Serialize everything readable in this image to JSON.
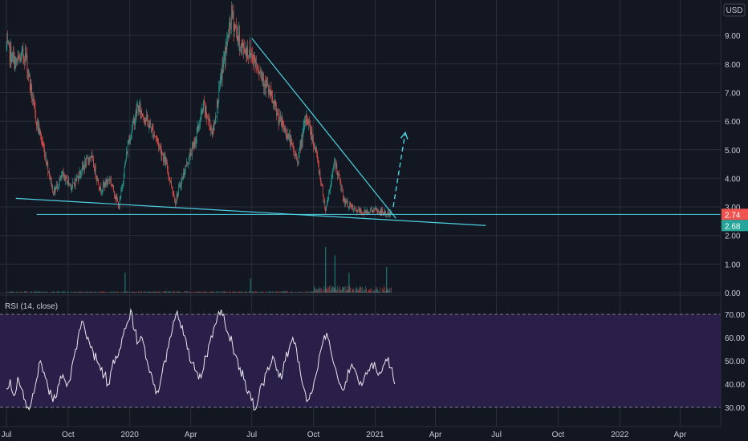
{
  "currency_label": "USD",
  "colors": {
    "background": "#131722",
    "grid": "#2a2e39",
    "up": "#26a69a",
    "down": "#ef5350",
    "drawing": "#4dd0e1",
    "rsi_band": "#2a1f49",
    "rsi_line": "#e8e8ee",
    "rsi_bound": "#787b86"
  },
  "chart_data": [
    {
      "type": "candlestick",
      "title": "",
      "price_axis": {
        "ylim": [
          0,
          10
        ],
        "ticks": [
          "0.00",
          "1.00",
          "2.00",
          "3.00",
          "4.00",
          "5.00",
          "6.00",
          "7.00",
          "8.00",
          "9.00"
        ],
        "tick_values": [
          0,
          1,
          2,
          3,
          4,
          5,
          6,
          7,
          8,
          9
        ]
      },
      "price_labels": [
        {
          "text": "2.74",
          "value": 2.74,
          "color": "#ef5350"
        },
        {
          "text": "2.68",
          "value": 2.68,
          "color": "#26a69a"
        }
      ],
      "x_axis_ticks": [
        "Jul",
        "Oct",
        "2020",
        "Apr",
        "Jul",
        "Oct",
        "2021",
        "Apr",
        "Jul",
        "Oct",
        "2022",
        "Apr"
      ],
      "price_path": [
        [
          "2019-07-01",
          8.6
        ],
        [
          "2019-07-15",
          8.0
        ],
        [
          "2019-07-29",
          8.4
        ],
        [
          "2019-08-12",
          6.3
        ],
        [
          "2019-08-26",
          5.0
        ],
        [
          "2019-09-09",
          3.5
        ],
        [
          "2019-09-23",
          4.1
        ],
        [
          "2019-10-07",
          3.7
        ],
        [
          "2019-10-21",
          4.3
        ],
        [
          "2019-11-04",
          4.8
        ],
        [
          "2019-11-18",
          3.6
        ],
        [
          "2019-12-02",
          4.0
        ],
        [
          "2019-12-16",
          3.0
        ],
        [
          "2019-12-30",
          5.3
        ],
        [
          "2020-01-13",
          6.5
        ],
        [
          "2020-01-27",
          6.0
        ],
        [
          "2020-02-10",
          5.4
        ],
        [
          "2020-02-24",
          4.5
        ],
        [
          "2020-03-09",
          3.2
        ],
        [
          "2020-03-23",
          4.3
        ],
        [
          "2020-04-06",
          5.2
        ],
        [
          "2020-04-20",
          6.5
        ],
        [
          "2020-05-04",
          5.6
        ],
        [
          "2020-05-18",
          7.8
        ],
        [
          "2020-06-01",
          9.7
        ],
        [
          "2020-06-15",
          8.6
        ],
        [
          "2020-06-29",
          8.4
        ],
        [
          "2020-07-13",
          7.8
        ],
        [
          "2020-07-27",
          7.0
        ],
        [
          "2020-08-10",
          6.1
        ],
        [
          "2020-08-24",
          5.5
        ],
        [
          "2020-09-07",
          4.6
        ],
        [
          "2020-09-21",
          6.2
        ],
        [
          "2020-10-05",
          4.9
        ],
        [
          "2020-10-19",
          2.9
        ],
        [
          "2020-11-02",
          4.6
        ],
        [
          "2020-11-16",
          3.2
        ],
        [
          "2020-11-30",
          2.9
        ],
        [
          "2020-12-14",
          2.8
        ],
        [
          "2020-12-28",
          2.9
        ],
        [
          "2021-01-11",
          2.8
        ],
        [
          "2021-01-25",
          2.74
        ]
      ],
      "volume_spikes": [
        [
          "2019-12-25",
          0.7
        ],
        [
          "2020-06-29",
          0.5
        ],
        [
          "2020-10-19",
          1.6
        ],
        [
          "2020-11-02",
          1.3
        ],
        [
          "2020-11-23",
          0.7
        ],
        [
          "2021-01-18",
          0.9
        ]
      ],
      "drawings": {
        "resistance_trendline": [
          [
            "2020-07-01",
            8.9
          ],
          [
            "2021-02-01",
            2.6
          ]
        ],
        "support_trendline": [
          [
            "2019-07-15",
            3.3
          ],
          [
            "2021-06-15",
            2.35
          ]
        ],
        "horizontal_level": 2.74,
        "projection_arrow": [
          [
            "2021-01-28",
            3.0
          ],
          [
            "2021-02-15",
            5.6
          ]
        ]
      }
    },
    {
      "type": "line",
      "title": "RSI (14, close)",
      "ylim": [
        25,
        74
      ],
      "ticks": [
        "30.00",
        "40.00",
        "50.00",
        "60.00",
        "70.00"
      ],
      "tick_values": [
        30,
        40,
        50,
        60,
        70
      ],
      "overbought": 70,
      "oversold": 30,
      "series": [
        {
          "x_start": "2019-07-01",
          "x_end": "2021-01-30",
          "values": [
            38,
            42,
            35,
            43,
            38,
            33,
            29,
            36,
            42,
            50,
            45,
            39,
            35,
            34,
            40,
            44,
            39,
            42,
            52,
            60,
            67,
            62,
            58,
            54,
            50,
            46,
            44,
            40,
            47,
            52,
            55,
            61,
            66,
            72,
            63,
            58,
            60,
            51,
            45,
            40,
            37,
            42,
            50,
            56,
            63,
            70,
            67,
            61,
            55,
            49,
            46,
            42,
            45,
            52,
            58,
            64,
            69,
            72,
            66,
            61,
            57,
            52,
            47,
            42,
            36,
            33,
            29,
            35,
            40,
            45,
            48,
            51,
            46,
            42,
            50,
            55,
            60,
            55,
            45,
            38,
            33,
            36,
            43,
            52,
            58,
            62,
            55,
            48,
            42,
            38,
            41,
            45,
            47,
            44,
            41,
            43,
            46,
            49,
            47,
            45,
            48,
            50,
            47,
            40
          ]
        }
      ]
    }
  ]
}
